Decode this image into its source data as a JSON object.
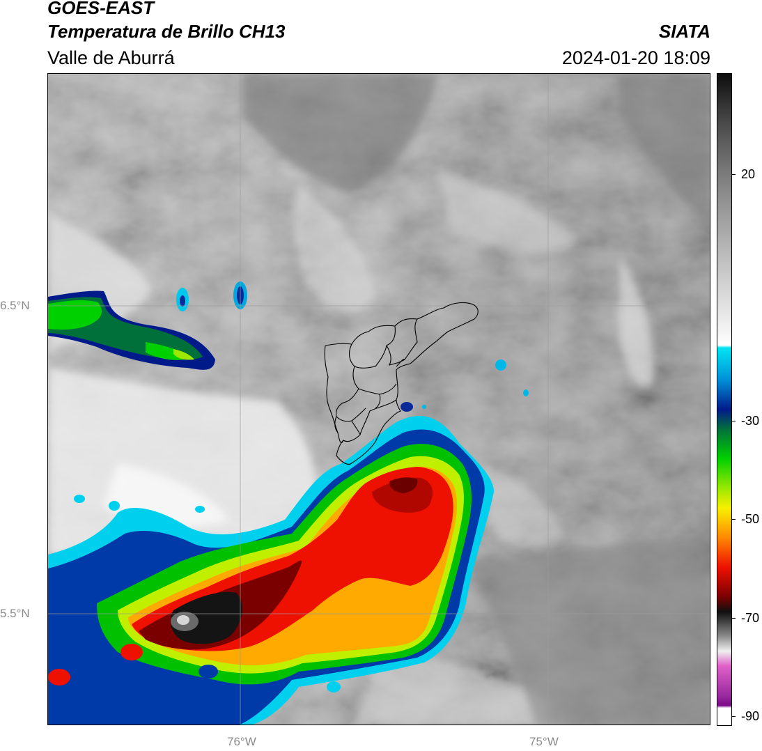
{
  "header": {
    "satellite": "GOES-EAST",
    "product": "Temperatura de Brillo CH13",
    "region": "Valle de Aburrá",
    "agency": "SIATA",
    "datetime": "2024-01-20 18:09"
  },
  "map": {
    "lon_labels": [
      "76°W",
      "75°W"
    ],
    "lat_labels": [
      "6.5°N",
      "5.5°N"
    ],
    "colors": {
      "background_gray": "#9a9a9a",
      "gridline": "#b0b0b0",
      "boundary": "#000000"
    }
  },
  "colorbar": {
    "tick_labels": [
      "20",
      "-30",
      "-50",
      "-70",
      "-90"
    ],
    "stops": [
      {
        "value": 40,
        "color": "#0e0e0e"
      },
      {
        "value": 30,
        "color": "#4a4a4a"
      },
      {
        "value": 20,
        "color": "#7a7a7a"
      },
      {
        "value": 10,
        "color": "#a2a2a2"
      },
      {
        "value": 0,
        "color": "#c8c8c8"
      },
      {
        "value": -10,
        "color": "#ececec"
      },
      {
        "value": -15,
        "color": "#ffffff"
      },
      {
        "value": -15.5,
        "color": "#00e5f0"
      },
      {
        "value": -22,
        "color": "#0090d8"
      },
      {
        "value": -28,
        "color": "#001a8a"
      },
      {
        "value": -32,
        "color": "#00703a"
      },
      {
        "value": -38,
        "color": "#00d000"
      },
      {
        "value": -44,
        "color": "#9ce800"
      },
      {
        "value": -48,
        "color": "#f8f000"
      },
      {
        "value": -54,
        "color": "#ff8800"
      },
      {
        "value": -60,
        "color": "#ee1000"
      },
      {
        "value": -66,
        "color": "#7a0000"
      },
      {
        "value": -69,
        "color": "#101010"
      },
      {
        "value": -74,
        "color": "#8c8c8c"
      },
      {
        "value": -77,
        "color": "#f0f0f0"
      },
      {
        "value": -80,
        "color": "#e060c8"
      },
      {
        "value": -86,
        "color": "#9a2aa0"
      },
      {
        "value": -88,
        "color": "#7a0a88"
      },
      {
        "value": -88.5,
        "color": "#ffffff"
      },
      {
        "value": -92,
        "color": "#ffffff"
      }
    ]
  }
}
